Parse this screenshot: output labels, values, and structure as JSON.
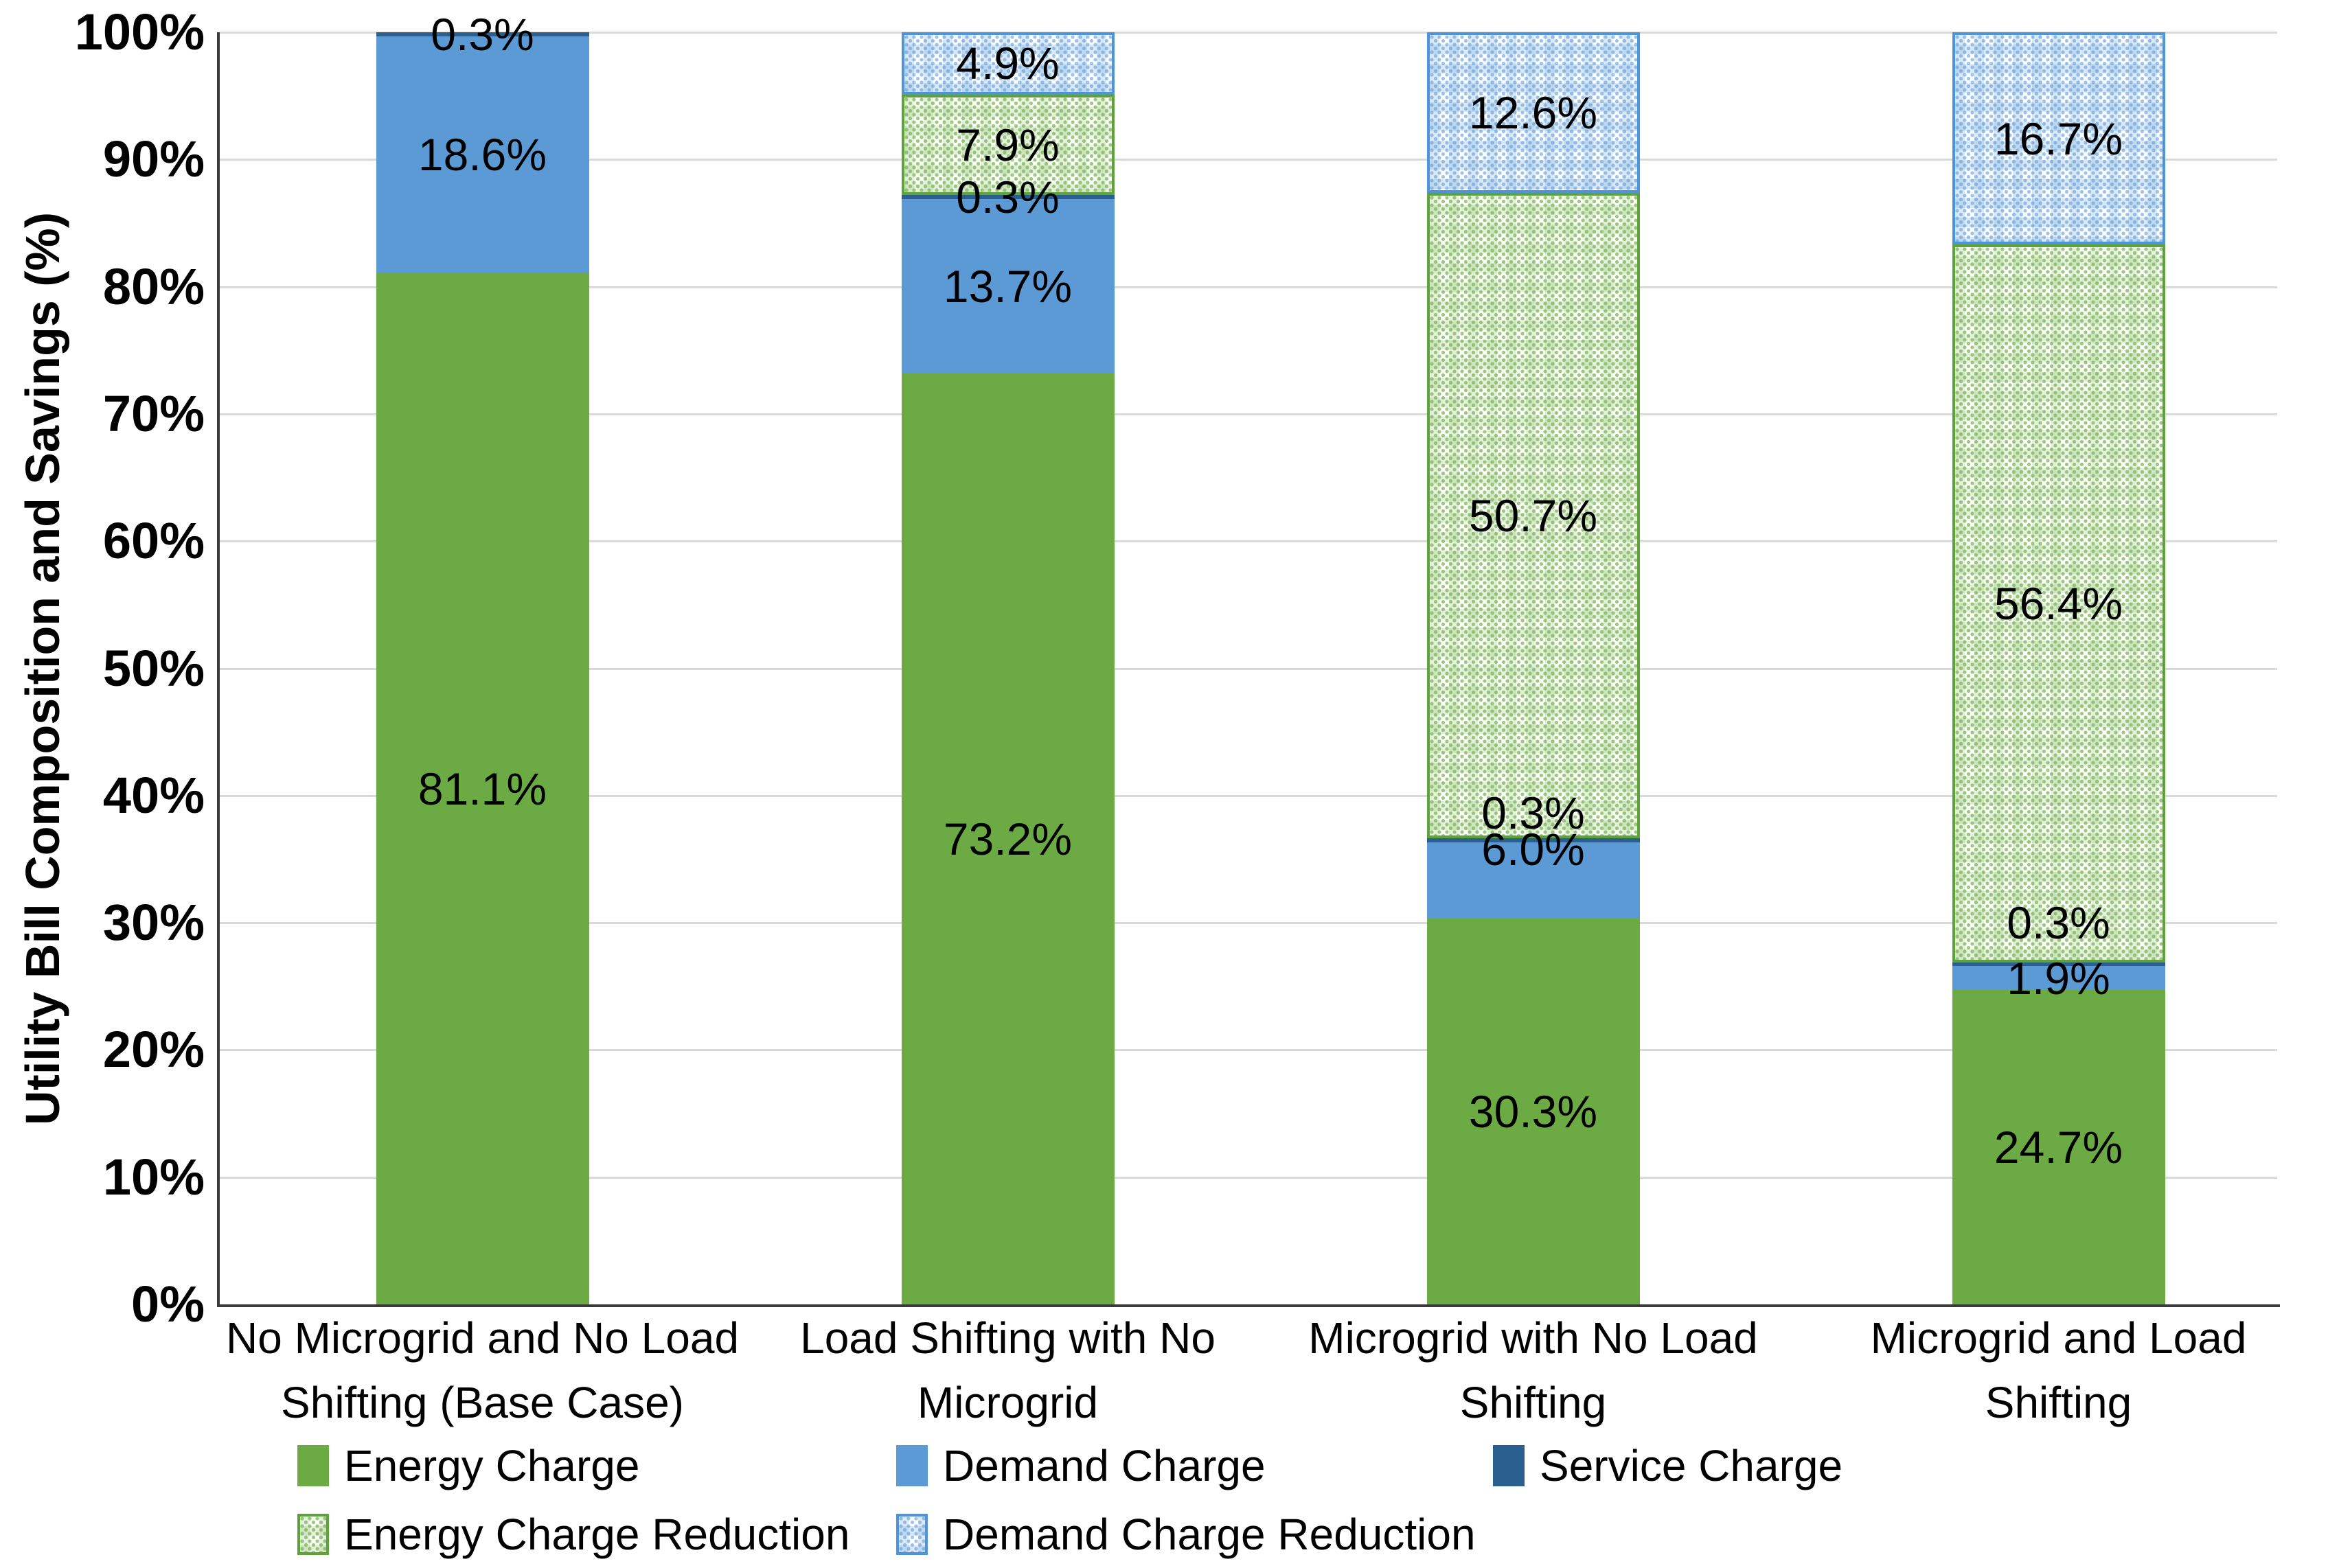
{
  "chart_data": {
    "type": "bar",
    "stacked": true,
    "orientation": "vertical",
    "ylabel": "Utility Bill Composition and Savings (%)",
    "xlabel": "",
    "ylim": [
      0,
      100
    ],
    "grid": "horizontal",
    "plot_background": "#FFFFFF",
    "gridline_color": "#D9D9D9",
    "ytick_labels": [
      "0%",
      "10%",
      "20%",
      "30%",
      "40%",
      "50%",
      "60%",
      "70%",
      "80%",
      "90%",
      "100%"
    ],
    "categories": [
      [
        "No Microgrid and No Load",
        "Shifting (Base Case)"
      ],
      [
        "Load Shifting with No",
        "Microgrid"
      ],
      [
        "Microgrid with No Load",
        "Shifting"
      ],
      [
        "Microgrid and Load",
        "Shifting"
      ]
    ],
    "series": [
      {
        "name": "Energy Charge",
        "style": "solid",
        "color": "#6CAB44",
        "values": [
          81.1,
          73.2,
          30.3,
          24.7
        ],
        "labels": [
          "81.1%",
          "73.2%",
          "30.3%",
          "24.7%"
        ]
      },
      {
        "name": "Demand Charge",
        "style": "solid",
        "color": "#5B9AD5",
        "values": [
          18.6,
          13.7,
          6.0,
          1.9
        ],
        "labels": [
          "18.6%",
          "13.7%",
          "6.0%",
          "1.9%"
        ]
      },
      {
        "name": "Service Charge",
        "style": "solid",
        "color": "#2B5F8F",
        "values": [
          0.3,
          0.3,
          0.3,
          0.3
        ],
        "labels": [
          "0.3%",
          "0.3%",
          "0.3%",
          "0.3%"
        ]
      },
      {
        "name": "Energy Charge Reduction",
        "style": "pattern-green",
        "color": "#5EA23B",
        "values": [
          0,
          7.9,
          50.7,
          56.4
        ],
        "labels": [
          null,
          "7.9%",
          "50.7%",
          "56.4%"
        ]
      },
      {
        "name": "Demand Charge Reduction",
        "style": "pattern-blue",
        "color": "#4D94DA",
        "values": [
          0,
          4.9,
          12.6,
          16.7
        ],
        "labels": [
          null,
          "4.9%",
          "12.6%",
          "16.7%"
        ]
      }
    ],
    "legend_position": "bottom",
    "legend_rows": [
      [
        "Energy Charge",
        "Demand Charge",
        "Service Charge"
      ],
      [
        "Energy Charge Reduction",
        "Demand Charge Reduction"
      ]
    ]
  }
}
